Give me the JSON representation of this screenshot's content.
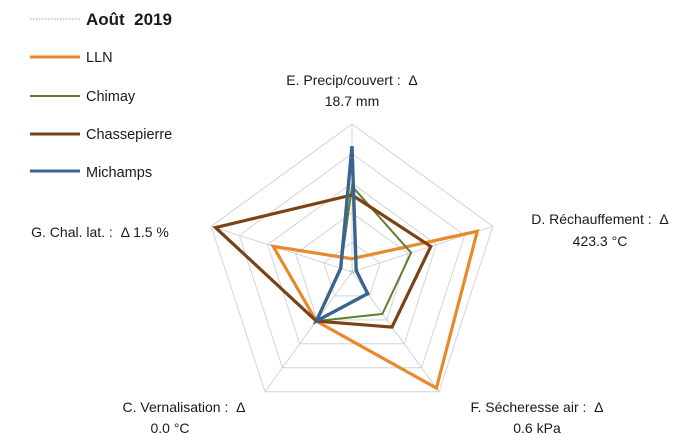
{
  "chart_data": {
    "type": "radar",
    "title": "Août  2019",
    "axes": [
      {
        "key": "E",
        "label_lines": [
          "E. Precip/couvert :  Δ",
          "18.7 mm"
        ]
      },
      {
        "key": "D",
        "label_lines": [
          "D. Réchauffement :  Δ",
          "423.3 °C"
        ]
      },
      {
        "key": "F",
        "label_lines": [
          "F. Sécheresse air :  Δ",
          "0.6 kPa"
        ]
      },
      {
        "key": "C",
        "label_lines": [
          "C. Vernalisation :  Δ",
          "0.0 °C"
        ]
      },
      {
        "key": "G",
        "label_lines": [
          "G. Chal. lat. :  Δ 1.5 %"
        ]
      }
    ],
    "axis_order": [
      "E",
      "D",
      "F",
      "C",
      "G"
    ],
    "range": [
      0,
      1
    ],
    "grid_levels": 5,
    "grid": true,
    "legend_position": "top-left",
    "baseline": {
      "name": "",
      "color": "#b0b0b0",
      "style": "dotted",
      "values": [
        0,
        0,
        0,
        0,
        0
      ]
    },
    "series": [
      {
        "name": "LLN",
        "color": "#E8892B",
        "values": [
          0.09,
          0.89,
          0.97,
          0.41,
          0.56
        ]
      },
      {
        "name": "Chimay",
        "color": "#5C7F36",
        "values": [
          0.58,
          0.42,
          0.35,
          0.41,
          0.08
        ]
      },
      {
        "name": "Chassepierre",
        "color": "#7B4315",
        "values": [
          0.52,
          0.56,
          0.46,
          0.41,
          0.97
        ]
      },
      {
        "name": "Michamps",
        "color": "#3A6390",
        "values": [
          0.85,
          0.03,
          0.18,
          0.41,
          0.08
        ]
      }
    ]
  }
}
